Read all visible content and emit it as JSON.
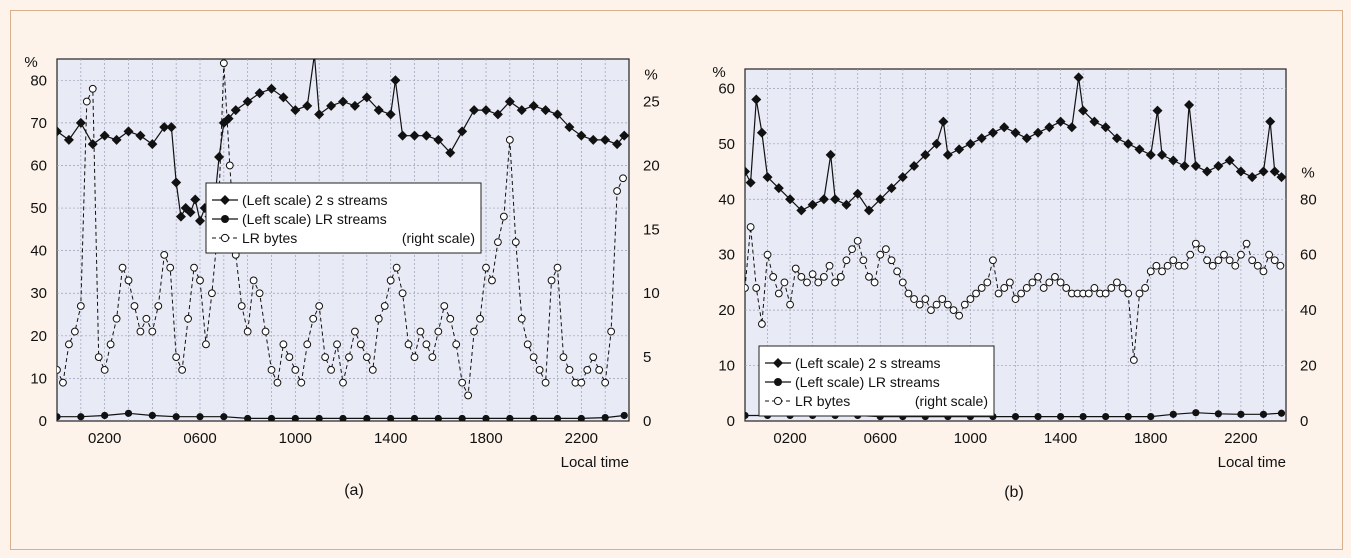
{
  "chart_data": [
    {
      "id": "a",
      "type": "line",
      "caption": "(a)",
      "xlabel": "Local time",
      "left_unit": "%",
      "right_unit": "%",
      "x_ticks": [
        "0200",
        "0600",
        "1000",
        "1400",
        "1800",
        "2200"
      ],
      "x_tick_values": [
        200,
        600,
        1000,
        1400,
        1800,
        2200
      ],
      "xlim": [
        0,
        2400
      ],
      "left_ylim": [
        0,
        85
      ],
      "left_ticks": [
        "0",
        "10",
        "20",
        "30",
        "40",
        "50",
        "60",
        "70",
        "80"
      ],
      "right_ylim": [
        0,
        28.33
      ],
      "right_ticks": [
        "0",
        "5",
        "10",
        "15",
        "20",
        "25"
      ],
      "grid": true,
      "legend": {
        "position": "center",
        "entries": [
          "(Left scale) 2 s streams",
          "(Left scale) LR streams",
          "LR bytes",
          "(right scale)"
        ]
      },
      "series": [
        {
          "name": "(Left scale) 2 s streams",
          "axis": "left",
          "marker": "diamond",
          "line": "solid",
          "x": [
            0,
            50,
            100,
            150,
            200,
            250,
            300,
            350,
            400,
            450,
            480,
            500,
            520,
            540,
            560,
            580,
            600,
            620,
            640,
            660,
            680,
            700,
            720,
            750,
            800,
            850,
            900,
            950,
            1000,
            1050,
            1080,
            1100,
            1150,
            1200,
            1250,
            1300,
            1350,
            1400,
            1420,
            1450,
            1500,
            1550,
            1600,
            1650,
            1700,
            1750,
            1800,
            1850,
            1900,
            1950,
            2000,
            2050,
            2100,
            2150,
            2200,
            2250,
            2300,
            2350,
            2380
          ],
          "y": [
            68,
            66,
            70,
            65,
            67,
            66,
            68,
            67,
            65,
            69,
            69,
            56,
            48,
            50,
            49,
            52,
            47,
            50,
            48,
            51,
            62,
            70,
            71,
            73,
            75,
            77,
            78,
            76,
            73,
            74,
            86,
            72,
            74,
            75,
            74,
            76,
            73,
            72,
            80,
            67,
            67,
            67,
            66,
            63,
            68,
            73,
            73,
            72,
            75,
            73,
            74,
            73,
            72,
            69,
            67,
            66,
            66,
            65,
            67
          ]
        },
        {
          "name": "(Left scale) LR streams",
          "axis": "left",
          "marker": "circle",
          "line": "solid",
          "x": [
            0,
            100,
            200,
            300,
            400,
            500,
            600,
            700,
            800,
            900,
            1000,
            1100,
            1200,
            1300,
            1400,
            1500,
            1600,
            1700,
            1800,
            1900,
            2000,
            2100,
            2200,
            2300,
            2380
          ],
          "y": [
            1,
            1,
            1.3,
            1.8,
            1.3,
            1,
            1,
            1,
            0.6,
            0.6,
            0.6,
            0.6,
            0.6,
            0.6,
            0.6,
            0.6,
            0.6,
            0.6,
            0.6,
            0.6,
            0.6,
            0.6,
            0.6,
            0.8,
            1.3
          ]
        },
        {
          "name": "LR bytes",
          "axis": "right",
          "marker": "open-circle",
          "line": "dashed",
          "x": [
            0,
            25,
            50,
            75,
            100,
            125,
            150,
            175,
            200,
            225,
            250,
            275,
            300,
            325,
            350,
            375,
            400,
            425,
            450,
            475,
            500,
            525,
            550,
            575,
            600,
            625,
            650,
            675,
            700,
            725,
            750,
            775,
            800,
            825,
            850,
            875,
            900,
            925,
            950,
            975,
            1000,
            1025,
            1050,
            1075,
            1100,
            1125,
            1150,
            1175,
            1200,
            1225,
            1250,
            1275,
            1300,
            1325,
            1350,
            1375,
            1400,
            1425,
            1450,
            1475,
            1500,
            1525,
            1550,
            1575,
            1600,
            1625,
            1650,
            1675,
            1700,
            1725,
            1750,
            1775,
            1800,
            1825,
            1850,
            1875,
            1900,
            1925,
            1950,
            1975,
            2000,
            2025,
            2050,
            2075,
            2100,
            2125,
            2150,
            2175,
            2200,
            2225,
            2250,
            2275,
            2300,
            2325,
            2350,
            2375
          ],
          "y": [
            4,
            3,
            6,
            7,
            9,
            25,
            26,
            5,
            4,
            6,
            8,
            12,
            11,
            9,
            7,
            8,
            7,
            9,
            13,
            12,
            5,
            4,
            8,
            12,
            11,
            6,
            10,
            15,
            28,
            20,
            13,
            9,
            7,
            11,
            10,
            7,
            4,
            3,
            6,
            5,
            4,
            3,
            6,
            8,
            9,
            5,
            4,
            6,
            3,
            5,
            7,
            6,
            5,
            4,
            8,
            9,
            11,
            12,
            10,
            6,
            5,
            7,
            6,
            5,
            7,
            9,
            8,
            6,
            3,
            2,
            7,
            8,
            12,
            11,
            14,
            16,
            22,
            14,
            8,
            6,
            5,
            4,
            3,
            11,
            12,
            5,
            4,
            3,
            3,
            4,
            5,
            4,
            3,
            7,
            18,
            19
          ]
        }
      ]
    },
    {
      "id": "b",
      "type": "line",
      "caption": "(b)",
      "xlabel": "Local time",
      "left_unit": "%",
      "right_unit": "%",
      "x_ticks": [
        "0200",
        "0600",
        "1000",
        "1400",
        "1800",
        "2200"
      ],
      "x_tick_values": [
        200,
        600,
        1000,
        1400,
        1800,
        2200
      ],
      "xlim": [
        0,
        2400
      ],
      "left_ylim": [
        0,
        63.5
      ],
      "left_ticks": [
        "0",
        "10",
        "20",
        "30",
        "40",
        "50",
        "60"
      ],
      "right_ylim": [
        0,
        127
      ],
      "right_ticks": [
        "0",
        "20",
        "40",
        "60",
        "80"
      ],
      "grid": true,
      "legend": {
        "position": "bottom-left",
        "entries": [
          "(Left scale) 2 s streams",
          "(Left scale) LR streams",
          "LR bytes",
          "(right scale)"
        ]
      },
      "series": [
        {
          "name": "(Left scale) 2 s streams",
          "axis": "left",
          "marker": "diamond",
          "line": "solid",
          "x": [
            0,
            25,
            50,
            75,
            100,
            150,
            200,
            250,
            300,
            350,
            380,
            400,
            450,
            500,
            550,
            600,
            650,
            700,
            750,
            800,
            850,
            880,
            900,
            950,
            1000,
            1050,
            1100,
            1150,
            1200,
            1250,
            1300,
            1350,
            1400,
            1450,
            1480,
            1500,
            1550,
            1600,
            1650,
            1700,
            1750,
            1800,
            1830,
            1850,
            1900,
            1950,
            1970,
            2000,
            2050,
            2100,
            2150,
            2200,
            2250,
            2300,
            2330,
            2350,
            2380
          ],
          "y": [
            45,
            43,
            58,
            52,
            44,
            42,
            40,
            38,
            39,
            40,
            48,
            40,
            39,
            41,
            38,
            40,
            42,
            44,
            46,
            48,
            50,
            54,
            48,
            49,
            50,
            51,
            52,
            53,
            52,
            51,
            52,
            53,
            54,
            53,
            62,
            56,
            54,
            53,
            51,
            50,
            49,
            48,
            56,
            48,
            47,
            46,
            57,
            46,
            45,
            46,
            47,
            45,
            44,
            45,
            54,
            45,
            44
          ]
        },
        {
          "name": "(Left scale) LR streams",
          "axis": "left",
          "marker": "circle",
          "line": "solid",
          "x": [
            0,
            100,
            200,
            300,
            400,
            500,
            600,
            700,
            800,
            900,
            1000,
            1100,
            1200,
            1300,
            1400,
            1500,
            1600,
            1700,
            1800,
            1900,
            2000,
            2100,
            2200,
            2300,
            2380
          ],
          "y": [
            1,
            1,
            1,
            1,
            1,
            1,
            0.8,
            0.8,
            0.8,
            0.8,
            0.8,
            0.8,
            0.8,
            0.8,
            0.8,
            0.8,
            0.8,
            0.8,
            0.8,
            1.2,
            1.5,
            1.3,
            1.2,
            1.2,
            1.4
          ]
        },
        {
          "name": "LR bytes",
          "axis": "right",
          "marker": "open-circle",
          "line": "dashed",
          "x": [
            0,
            25,
            50,
            75,
            100,
            125,
            150,
            175,
            200,
            225,
            250,
            275,
            300,
            325,
            350,
            375,
            400,
            425,
            450,
            475,
            500,
            525,
            550,
            575,
            600,
            625,
            650,
            675,
            700,
            725,
            750,
            775,
            800,
            825,
            850,
            875,
            900,
            925,
            950,
            975,
            1000,
            1025,
            1050,
            1075,
            1100,
            1125,
            1150,
            1175,
            1200,
            1225,
            1250,
            1275,
            1300,
            1325,
            1350,
            1375,
            1400,
            1425,
            1450,
            1475,
            1500,
            1525,
            1550,
            1575,
            1600,
            1625,
            1650,
            1675,
            1700,
            1725,
            1750,
            1775,
            1800,
            1825,
            1850,
            1875,
            1900,
            1925,
            1950,
            1975,
            2000,
            2025,
            2050,
            2075,
            2100,
            2125,
            2150,
            2175,
            2200,
            2225,
            2250,
            2275,
            2300,
            2325,
            2350,
            2375
          ],
          "y": [
            48,
            70,
            48,
            35,
            60,
            52,
            46,
            50,
            42,
            55,
            52,
            50,
            53,
            50,
            52,
            56,
            50,
            52,
            58,
            62,
            65,
            58,
            52,
            50,
            60,
            62,
            58,
            54,
            50,
            46,
            44,
            42,
            44,
            40,
            42,
            44,
            42,
            40,
            38,
            42,
            44,
            46,
            48,
            50,
            58,
            46,
            48,
            50,
            44,
            46,
            48,
            50,
            52,
            48,
            50,
            52,
            50,
            48,
            46,
            46,
            46,
            46,
            48,
            46,
            46,
            48,
            50,
            48,
            46,
            22,
            46,
            48,
            54,
            56,
            54,
            56,
            58,
            56,
            56,
            60,
            64,
            62,
            58,
            56,
            58,
            60,
            58,
            56,
            60,
            64,
            58,
            56,
            54,
            60,
            58,
            56
          ]
        }
      ]
    }
  ]
}
